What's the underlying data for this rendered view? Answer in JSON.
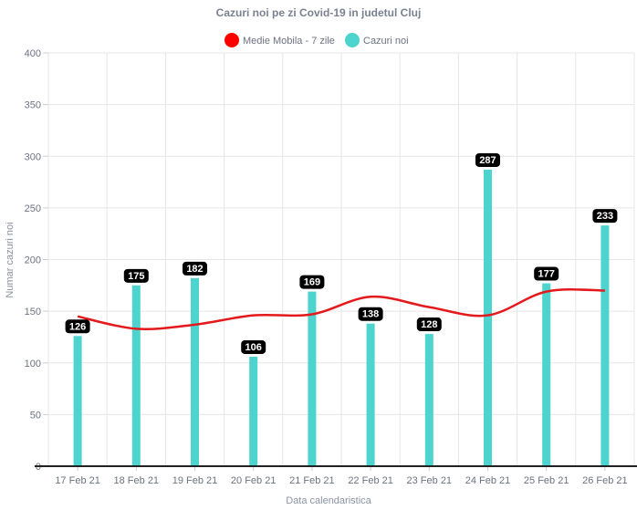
{
  "chart_data": {
    "type": "bar",
    "title": "Cazuri noi pe zi Covid-19 in judetul Cluj",
    "xlabel": "Data calendaristica",
    "ylabel": "Numar cazuri noi",
    "ylim": [
      0,
      400
    ],
    "yticks": [
      0,
      50,
      100,
      150,
      200,
      250,
      300,
      350,
      400
    ],
    "grid": true,
    "legend_position": "top-center",
    "categories": [
      "17 Feb 21",
      "18 Feb 21",
      "19 Feb 21",
      "20 Feb 21",
      "21 Feb 21",
      "22 Feb 21",
      "23 Feb 21",
      "24 Feb 21",
      "25 Feb 21",
      "26 Feb 21"
    ],
    "series": [
      {
        "name": "Medie Mobila - 7 zile",
        "type": "line",
        "color": "#e3191c",
        "values": [
          145,
          133,
          137,
          146,
          147,
          164,
          154,
          146,
          169,
          170
        ]
      },
      {
        "name": "Cazuri noi",
        "type": "bar",
        "color": "#4dd4cf",
        "values": [
          126,
          175,
          182,
          106,
          169,
          138,
          128,
          287,
          177,
          233
        ],
        "data_labels": [
          "126",
          "175",
          "182",
          "106",
          "169",
          "138",
          "128",
          "287",
          "177",
          "233"
        ]
      }
    ]
  }
}
